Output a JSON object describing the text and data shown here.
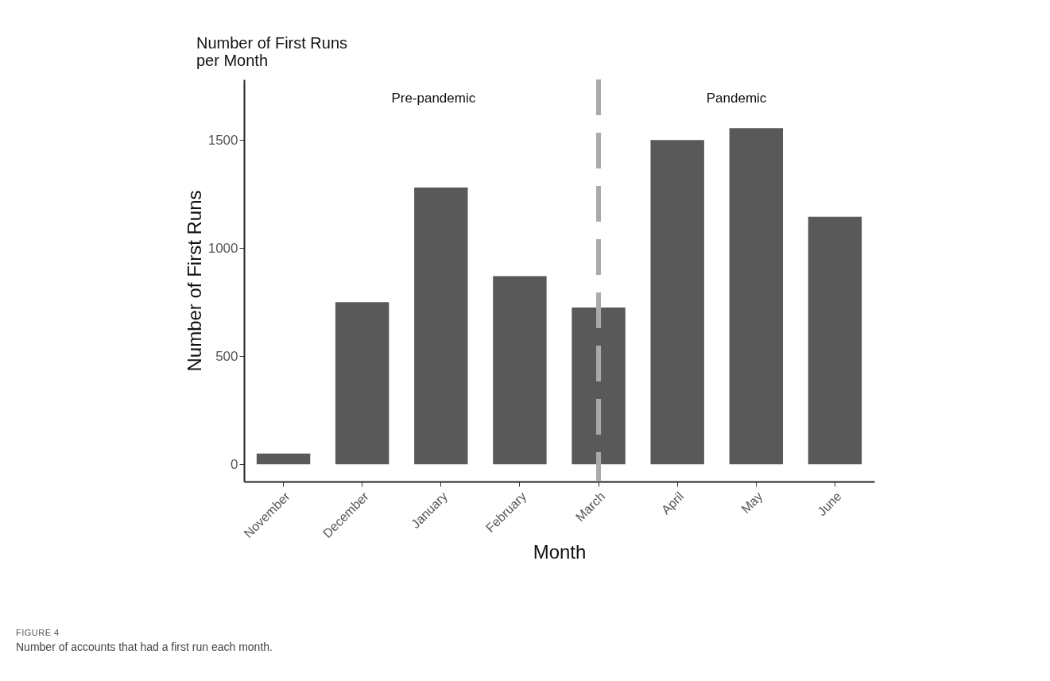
{
  "chart_data": {
    "type": "bar",
    "title": "Number of First Runs\nper Month",
    "xlabel": "Month",
    "ylabel": "Number of First Runs",
    "categories": [
      "November",
      "December",
      "January",
      "February",
      "March",
      "April",
      "May",
      "June"
    ],
    "values": [
      50,
      750,
      1280,
      870,
      725,
      1500,
      1555,
      1145
    ],
    "color": "#595959",
    "ylim": [
      -80,
      1780
    ],
    "yticks": [
      0,
      500,
      1000,
      1500
    ],
    "grid": false,
    "ref_lines": [
      {
        "axis": "x",
        "value": "March",
        "color": "#aaaaaa",
        "line_style": "dashed"
      }
    ],
    "annotations": [
      "Pre-pandemic",
      "Pandemic",
      "FIGURE 4",
      "Number of accounts that had a first run each month."
    ]
  }
}
